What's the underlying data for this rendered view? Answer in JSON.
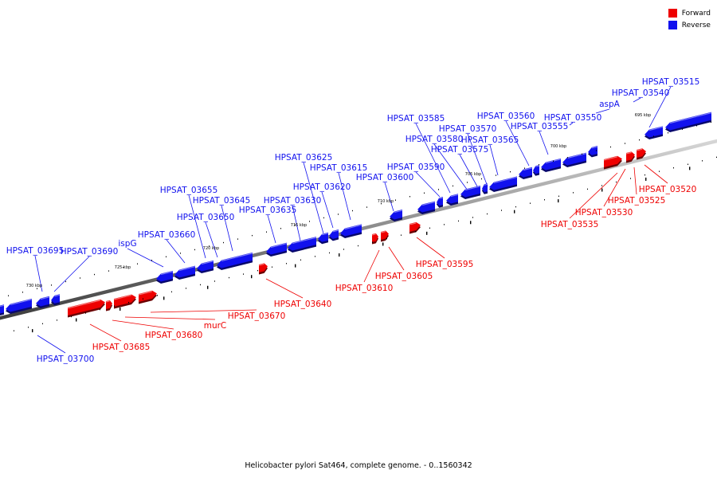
{
  "caption": "Helicobacter pylori Sat464, complete genome. - 0..1560342",
  "legend": [
    {
      "label": "Forward",
      "color": "#ee0000"
    },
    {
      "label": "Reverse",
      "color": "#1111ee"
    }
  ],
  "colors": {
    "forward": "#ee0000",
    "reverse": "#1111ee",
    "backbone": "#888888"
  },
  "ticks": [
    "695 kbp",
    "700 kbp",
    "705 kbp",
    "710 kbp",
    "715 kbp",
    "720 kbp",
    "725 kbp",
    "730 kbp"
  ],
  "genes": {
    "reverse": [
      "HPSAT_03515",
      "HPSAT_03540",
      "aspA",
      "HPSAT_03550",
      "HPSAT_03555",
      "HPSAT_03560",
      "HPSAT_03565",
      "HPSAT_03570",
      "HPSAT_03575",
      "HPSAT_03580",
      "HPSAT_03585",
      "HPSAT_03590",
      "HPSAT_03600",
      "HPSAT_03615",
      "HPSAT_03620",
      "HPSAT_03625",
      "HPSAT_03630",
      "HPSAT_03635",
      "HPSAT_03645",
      "HPSAT_03650",
      "HPSAT_03655",
      "HPSAT_03660",
      "ispG",
      "HPSAT_03690",
      "HPSAT_03695",
      "HPSAT_03700"
    ],
    "forward": [
      "HPSAT_03520",
      "HPSAT_03525",
      "HPSAT_03530",
      "HPSAT_03535",
      "HPSAT_03595",
      "HPSAT_03605",
      "HPSAT_03610",
      "HPSAT_03640",
      "HPSAT_03670",
      "murC",
      "HPSAT_03680",
      "HPSAT_03685"
    ]
  }
}
